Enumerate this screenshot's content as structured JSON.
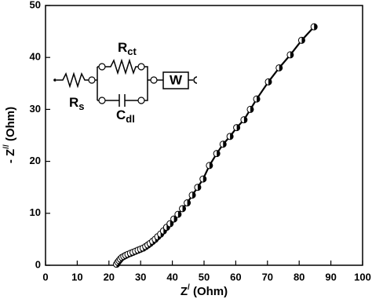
{
  "chart_data": {
    "type": "line",
    "xlabel": {
      "base": "Z",
      "sup": "/",
      "unit": "(Ohm)"
    },
    "ylabel": {
      "pre": "- Z",
      "sup": "//",
      "unit": "(Ohm)"
    },
    "x": [
      22.4,
      22.8,
      23.2,
      23.6,
      24.1,
      24.7,
      25.3,
      26,
      26.8,
      27.6,
      28.4,
      29.2,
      30,
      30.8,
      31.6,
      32.3,
      33,
      33.8,
      34.6,
      35.4,
      36.3,
      37.2,
      38.2,
      39.3,
      40.5,
      41.8,
      43.2,
      44.7,
      46.3,
      48,
      49.7,
      51.7,
      54,
      56,
      58.2,
      60.3,
      62.6,
      64.6,
      66.6,
      70.3,
      73.7,
      77.2,
      80.8,
      84.7
    ],
    "values": [
      0.2,
      0.6,
      0.9,
      1.2,
      1.5,
      1.7,
      1.9,
      2.1,
      2.3,
      2.5,
      2.7,
      2.9,
      3.1,
      3.3,
      3.6,
      3.9,
      4.2,
      4.6,
      5.0,
      5.5,
      6.0,
      6.6,
      7.3,
      8.0,
      8.9,
      9.8,
      10.9,
      12.0,
      13.5,
      15.0,
      16.6,
      19.2,
      21.5,
      23.3,
      24.8,
      26.5,
      28,
      30,
      32,
      35.3,
      38,
      40.5,
      43.3,
      45.9
    ],
    "color": "#000000",
    "xlim": [
      0,
      100
    ],
    "xticks": [
      0,
      10,
      20,
      30,
      40,
      50,
      60,
      70,
      80,
      90,
      100
    ],
    "ylim": [
      0,
      50
    ],
    "yticks": [
      0,
      10,
      20,
      30,
      40,
      50
    ],
    "circuit": {
      "rct": {
        "base": "R",
        "sub": "ct"
      },
      "rs": {
        "base": "R",
        "sub": "s"
      },
      "cdl": {
        "base": "C",
        "sub": "dl"
      },
      "w": "W"
    }
  }
}
